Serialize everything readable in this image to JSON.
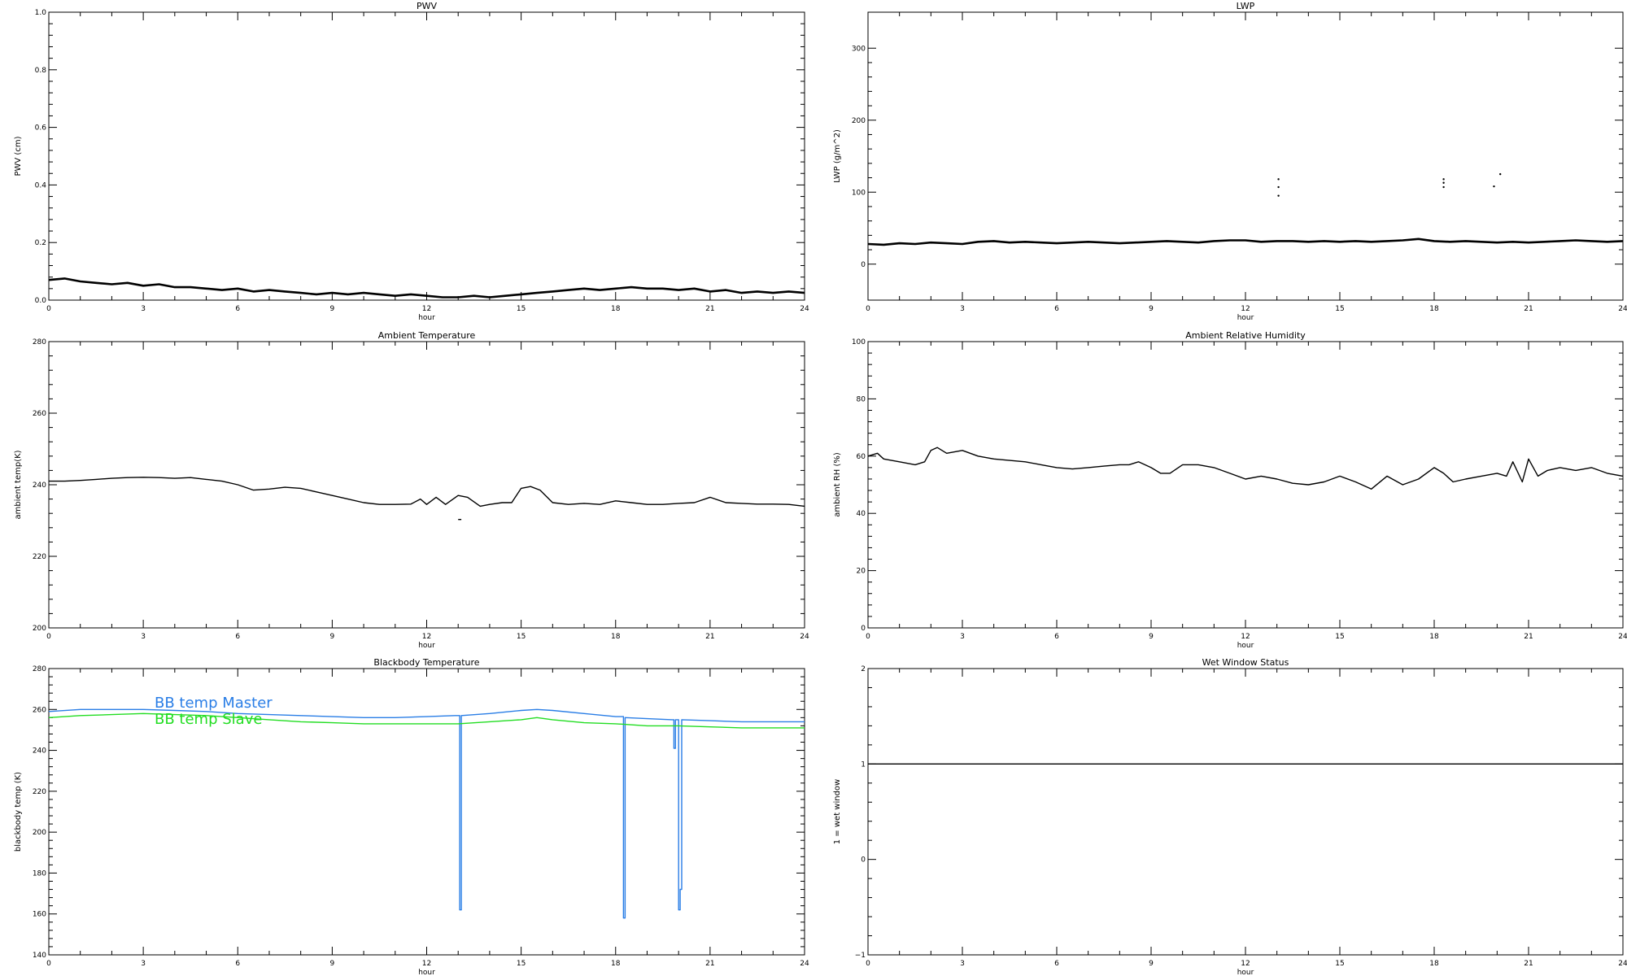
{
  "chart_data": [
    {
      "type": "line",
      "title": "PWV",
      "xlabel": "hour",
      "ylabel": "PWV (cm)",
      "xlim": [
        0,
        24
      ],
      "ylim": [
        0.0,
        1.0
      ],
      "xticks": [
        "0",
        "3",
        "6",
        "9",
        "12",
        "15",
        "18",
        "21",
        "24"
      ],
      "yticks": [
        "0.0",
        "0.2",
        "0.4",
        "0.6",
        "0.8",
        "1.0"
      ],
      "series": [
        {
          "color": "#000000",
          "x": [
            0,
            0.5,
            1,
            1.5,
            2,
            2.5,
            3,
            3.5,
            4,
            4.5,
            5,
            5.5,
            6,
            6.5,
            7,
            7.5,
            8,
            8.5,
            9,
            9.5,
            10,
            10.5,
            11,
            11.5,
            12,
            12.5,
            13,
            13.5,
            14,
            14.5,
            15,
            15.5,
            16,
            16.5,
            17,
            17.5,
            18,
            18.5,
            19,
            19.5,
            20,
            20.5,
            21,
            21.5,
            22,
            22.5,
            23,
            23.5,
            24
          ],
          "values": [
            0.07,
            0.075,
            0.065,
            0.06,
            0.055,
            0.06,
            0.05,
            0.055,
            0.045,
            0.045,
            0.04,
            0.035,
            0.04,
            0.03,
            0.035,
            0.03,
            0.025,
            0.02,
            0.025,
            0.02,
            0.025,
            0.02,
            0.015,
            0.02,
            0.015,
            0.01,
            0.01,
            0.015,
            0.01,
            0.015,
            0.02,
            0.025,
            0.03,
            0.035,
            0.04,
            0.035,
            0.04,
            0.045,
            0.04,
            0.04,
            0.035,
            0.04,
            0.03,
            0.035,
            0.025,
            0.03,
            0.025,
            0.03,
            0.025
          ]
        }
      ]
    },
    {
      "type": "line",
      "title": "LWP",
      "xlabel": "hour",
      "ylabel": "LWP (g/m^2)",
      "xlim": [
        0,
        24
      ],
      "ylim": [
        -50,
        350
      ],
      "xticks": [
        "0",
        "3",
        "6",
        "9",
        "12",
        "15",
        "18",
        "21",
        "24"
      ],
      "yticks": [
        "0",
        "100",
        "200",
        "300"
      ],
      "series": [
        {
          "color": "#000000",
          "x": [
            0,
            0.5,
            1,
            1.5,
            2,
            2.5,
            3,
            3.5,
            4,
            4.5,
            5,
            5.5,
            6,
            6.5,
            7,
            7.5,
            8,
            8.5,
            9,
            9.5,
            10,
            10.5,
            11,
            11.5,
            12,
            12.5,
            13,
            13.5,
            14,
            14.5,
            15,
            15.5,
            16,
            16.5,
            17,
            17.5,
            18,
            18.5,
            19,
            19.5,
            20,
            20.5,
            21,
            21.5,
            22,
            22.5,
            23,
            23.5,
            24
          ],
          "values": [
            28,
            27,
            29,
            28,
            30,
            29,
            28,
            31,
            32,
            30,
            31,
            30,
            29,
            30,
            31,
            30,
            29,
            30,
            31,
            32,
            31,
            30,
            32,
            33,
            33,
            31,
            32,
            32,
            31,
            32,
            31,
            32,
            31,
            32,
            33,
            35,
            32,
            31,
            32,
            31,
            30,
            31,
            30,
            31,
            32,
            33,
            32,
            31,
            32
          ]
        },
        {
          "color": "#000000",
          "x": [
            13.05,
            13.05,
            13.05,
            18.3,
            18.3,
            18.3,
            19.9,
            20.1
          ],
          "values": [
            118,
            107,
            95,
            118,
            113,
            107,
            108,
            125
          ]
        }
      ]
    },
    {
      "type": "line",
      "title": "Ambient Temperature",
      "xlabel": "hour",
      "ylabel": "ambient temp(K)",
      "xlim": [
        0,
        24
      ],
      "ylim": [
        200,
        280
      ],
      "xticks": [
        "0",
        "3",
        "6",
        "9",
        "12",
        "15",
        "18",
        "21",
        "24"
      ],
      "yticks": [
        "200",
        "220",
        "240",
        "260",
        "280"
      ],
      "series": [
        {
          "color": "#000000",
          "x": [
            0,
            0.5,
            1,
            1.5,
            2,
            2.5,
            3,
            3.5,
            4,
            4.5,
            5,
            5.5,
            6,
            6.5,
            7,
            7.5,
            8,
            8.5,
            9,
            9.5,
            10,
            10.5,
            11,
            11.5,
            11.8,
            12,
            12.3,
            12.6,
            13,
            13.3,
            13.7,
            14,
            14.4,
            14.7,
            15,
            15.3,
            15.6,
            16,
            16.5,
            17,
            17.5,
            18,
            18.5,
            19,
            19.5,
            20,
            20.5,
            21,
            21.5,
            22,
            22.5,
            23,
            23.5,
            24
          ],
          "values": [
            241,
            241,
            241.2,
            241.5,
            241.8,
            242,
            242.1,
            242,
            241.8,
            242,
            241.5,
            241,
            240,
            238.5,
            238.8,
            239.3,
            239,
            238,
            237,
            236,
            235,
            234.5,
            234.5,
            234.6,
            236,
            234.5,
            236.5,
            234.5,
            237,
            236.5,
            234,
            234.5,
            235,
            235,
            239,
            239.5,
            238.5,
            235,
            234.5,
            234.8,
            234.5,
            235.5,
            235,
            234.5,
            234.5,
            234.8,
            235,
            236.5,
            235,
            234.8,
            234.6,
            234.6,
            234.5,
            234
          ]
        },
        {
          "color": "#000000",
          "x": [
            13.0,
            13.1
          ],
          "values": [
            230.3,
            230.3
          ]
        }
      ]
    },
    {
      "type": "line",
      "title": "Ambient Relative Humidity",
      "xlabel": "hour",
      "ylabel": "ambient RH (%)",
      "xlim": [
        0,
        24
      ],
      "ylim": [
        0,
        100
      ],
      "xticks": [
        "0",
        "3",
        "6",
        "9",
        "12",
        "15",
        "18",
        "21",
        "24"
      ],
      "yticks": [
        "0",
        "20",
        "40",
        "60",
        "80",
        "100"
      ],
      "series": [
        {
          "color": "#000000",
          "x": [
            0,
            0.3,
            0.5,
            1,
            1.5,
            1.8,
            2,
            2.2,
            2.5,
            3,
            3.5,
            4,
            4.5,
            5,
            5.5,
            6,
            6.5,
            7,
            7.5,
            8,
            8.3,
            8.6,
            9,
            9.3,
            9.6,
            10,
            10.5,
            11,
            11.5,
            12,
            12.5,
            13,
            13.5,
            14,
            14.5,
            15,
            15.5,
            16,
            16.5,
            17,
            17.5,
            18,
            18.3,
            18.6,
            19,
            19.5,
            20,
            20.3,
            20.5,
            20.8,
            21,
            21.3,
            21.6,
            22,
            22.5,
            23,
            23.5,
            24
          ],
          "values": [
            60,
            61,
            59,
            58,
            57,
            58,
            62,
            63,
            61,
            62,
            60,
            59,
            58.5,
            58,
            57,
            56,
            55.5,
            56,
            56.5,
            57,
            57,
            58,
            56,
            54,
            54,
            57,
            57,
            56,
            54,
            52,
            53,
            52,
            50.5,
            50,
            51,
            53,
            51,
            48.5,
            53,
            50,
            52,
            56,
            54,
            51,
            52,
            53,
            54,
            53,
            58,
            51,
            59,
            53,
            55,
            56,
            55,
            56,
            54,
            53
          ]
        }
      ]
    },
    {
      "type": "line",
      "title": "Blackbody Temperature",
      "xlabel": "hour",
      "ylabel": "blackbody temp (K)",
      "xlim": [
        0,
        24
      ],
      "ylim": [
        140,
        280
      ],
      "xticks": [
        "0",
        "3",
        "6",
        "9",
        "12",
        "15",
        "18",
        "21",
        "24"
      ],
      "yticks": [
        "140",
        "160",
        "180",
        "200",
        "220",
        "240",
        "260",
        "280"
      ],
      "series": [
        {
          "name": "BB temp Master",
          "color": "#2a7ee6",
          "x": [
            0,
            1,
            2,
            3,
            4,
            5,
            6,
            7,
            8,
            9,
            10,
            11,
            12,
            12.9,
            13.05,
            13.05,
            13.1,
            13.1,
            14,
            15,
            15.5,
            16,
            17,
            18,
            18.2,
            18.25,
            18.25,
            18.3,
            18.3,
            19,
            19.8,
            19.85,
            19.85,
            19.9,
            19.9,
            20.0,
            20.0,
            20.05,
            20.05,
            20.1,
            20.1,
            21,
            22,
            23,
            24
          ],
          "values": [
            259,
            260,
            260,
            260,
            259.5,
            259,
            258,
            257.5,
            257,
            256.5,
            256,
            256,
            256.5,
            257,
            257,
            162,
            162,
            257,
            258,
            259.5,
            260,
            259.5,
            258,
            256.5,
            256.5,
            256.5,
            158,
            158,
            256,
            255.5,
            255,
            255,
            241,
            241,
            255,
            255,
            162,
            162,
            172,
            172,
            255,
            254.5,
            254,
            254,
            254
          ]
        },
        {
          "name": "BB temp Slave",
          "color": "#22dd22",
          "x": [
            0,
            1,
            2,
            3,
            4,
            5,
            6,
            7,
            8,
            9,
            10,
            11,
            12,
            13,
            14,
            15,
            15.5,
            16,
            17,
            18,
            19,
            20,
            21,
            22,
            23,
            24
          ],
          "values": [
            256,
            257,
            257.5,
            258,
            257.5,
            257,
            256,
            255,
            254,
            253.5,
            253,
            253,
            253,
            253,
            254,
            255,
            256,
            255,
            253.5,
            253,
            252,
            252,
            251.5,
            251,
            251,
            251
          ]
        }
      ]
    },
    {
      "type": "line",
      "title": "Wet Window Status",
      "xlabel": "hour",
      "ylabel": "1 = wet window",
      "xlim": [
        0,
        24
      ],
      "ylim": [
        -1,
        2
      ],
      "xticks": [
        "0",
        "3",
        "6",
        "9",
        "12",
        "15",
        "18",
        "21",
        "24"
      ],
      "yticks": [
        "−1",
        "0",
        "1",
        "2"
      ],
      "series": [
        {
          "color": "#000000",
          "x": [
            0,
            24
          ],
          "values": [
            1,
            1
          ]
        }
      ]
    }
  ]
}
